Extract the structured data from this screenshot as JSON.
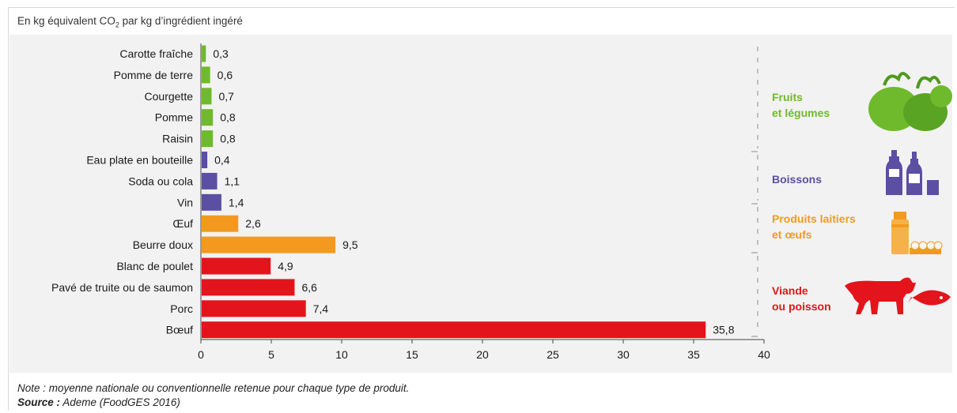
{
  "chart_data": {
    "type": "bar",
    "orientation": "horizontal",
    "subtitle_prefix": "En kg équivalent CO",
    "subtitle_sub": "2",
    "subtitle_suffix": " par kg d’ingrédient ingéré",
    "categories": [
      "Carotte fraîche",
      "Pomme de terre",
      "Courgette",
      "Pomme",
      "Raisin",
      "Eau plate en bouteille",
      "Soda ou cola",
      "Vin",
      "Œuf",
      "Beurre doux",
      "Blanc de poulet",
      "Pavé de truite ou de saumon",
      "Porc",
      "Bœuf"
    ],
    "values": [
      0.3,
      0.6,
      0.7,
      0.8,
      0.8,
      0.4,
      1.1,
      1.4,
      2.6,
      9.5,
      4.9,
      6.6,
      7.4,
      35.8
    ],
    "value_labels": [
      "0,3",
      "0,6",
      "0,7",
      "0,8",
      "0,8",
      "0,4",
      "1,1",
      "1,4",
      "2,6",
      "9,5",
      "4,9",
      "6,6",
      "7,4",
      "35,8"
    ],
    "groups_index": [
      0,
      0,
      0,
      0,
      0,
      1,
      1,
      1,
      2,
      2,
      3,
      3,
      3,
      3
    ],
    "groups": [
      {
        "label_lines": [
          "Fruits",
          "et légumes"
        ],
        "color": "#6fba2c",
        "icon": "vegetables-icon"
      },
      {
        "label_lines": [
          "Boissons"
        ],
        "color": "#5b4fa3",
        "icon": "bottles-icon"
      },
      {
        "label_lines": [
          "Produits laitiers",
          "et œufs"
        ],
        "color": "#f39a1e",
        "icon": "dairy-eggs-icon"
      },
      {
        "label_lines": [
          "Viande",
          "ou poisson"
        ],
        "color": "#e3141b",
        "icon": "cow-fish-icon"
      }
    ],
    "xlim": [
      0,
      40
    ],
    "x_ticks": [
      0,
      5,
      10,
      15,
      20,
      25,
      30,
      35,
      40
    ],
    "grid": false
  },
  "note": "Note : moyenne nationale ou conventionnelle retenue pour chaque type de produit.",
  "source_label": "Source :",
  "source_text": " Ademe (FoodGES 2016)"
}
